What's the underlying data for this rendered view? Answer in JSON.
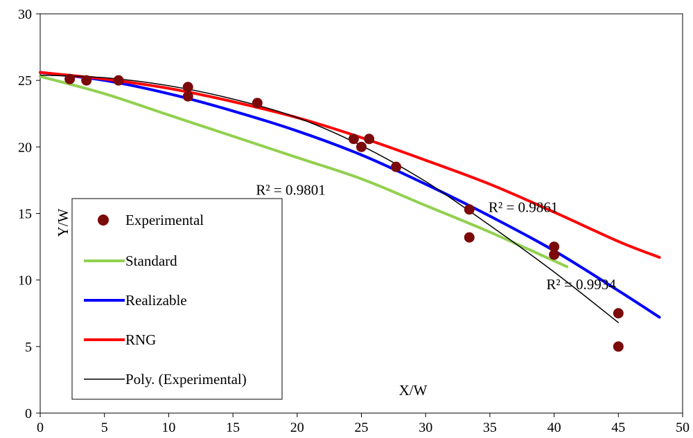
{
  "chart_data": {
    "type": "scatter",
    "xlabel": "X/W",
    "ylabel": "Y/W",
    "xlim": [
      0,
      50
    ],
    "ylim": [
      0,
      30
    ],
    "xticks": [
      0,
      5,
      10,
      15,
      20,
      25,
      30,
      35,
      40,
      45,
      50
    ],
    "yticks": [
      0,
      5,
      10,
      15,
      20,
      25,
      30
    ],
    "grid": false,
    "legend_position": "left",
    "series": [
      {
        "name": "Experimental",
        "kind": "markers",
        "color": "#7b0a0a",
        "x": [
          2.3,
          3.6,
          6.1,
          11.5,
          11.5,
          16.9,
          24.4,
          25.0,
          25.6,
          27.7,
          33.4,
          33.4,
          40.0,
          40.0,
          45.0,
          45.0
        ],
        "y": [
          25.1,
          25.0,
          25.0,
          24.5,
          23.8,
          23.3,
          20.6,
          20.0,
          20.6,
          18.5,
          15.3,
          13.2,
          12.5,
          11.9,
          7.5,
          5.0
        ]
      },
      {
        "name": "Standard",
        "kind": "line",
        "color": "#92d050",
        "x": [
          0,
          5,
          10,
          15,
          20,
          25,
          30,
          35,
          41
        ],
        "y": [
          25.3,
          24.0,
          22.4,
          20.8,
          19.2,
          17.6,
          15.6,
          13.6,
          11.0
        ]
      },
      {
        "name": "Realizable",
        "kind": "line",
        "color": "#0000ff",
        "x": [
          0,
          5,
          10,
          15,
          20,
          25,
          30,
          35,
          40,
          45,
          48.2
        ],
        "y": [
          25.6,
          25.0,
          24.0,
          22.7,
          21.2,
          19.4,
          17.2,
          14.8,
          12.2,
          9.2,
          7.2
        ]
      },
      {
        "name": "RNG",
        "kind": "line",
        "color": "#ff0000",
        "x": [
          0,
          5,
          10,
          15,
          20,
          25,
          30,
          35,
          40,
          45,
          48.2
        ],
        "y": [
          25.6,
          25.1,
          24.4,
          23.4,
          22.2,
          20.7,
          19.0,
          17.2,
          15.1,
          12.9,
          11.7
        ]
      },
      {
        "name": "Poly. (Experimental)",
        "kind": "trendline",
        "color": "#000000",
        "x": [
          0,
          5,
          10,
          15,
          20,
          25,
          30,
          35,
          40,
          45
        ],
        "y": [
          25.4,
          25.2,
          24.6,
          23.6,
          22.2,
          20.1,
          17.4,
          14.1,
          10.6,
          6.8
        ]
      }
    ],
    "annotations": [
      {
        "text": "R² = 0.9801",
        "x": 19.5,
        "y": 16.4
      },
      {
        "text": "R² = 0.9861",
        "x": 37.6,
        "y": 15.1
      },
      {
        "text": "R² = 0.9934",
        "x": 42.1,
        "y": 9.3
      }
    ]
  }
}
